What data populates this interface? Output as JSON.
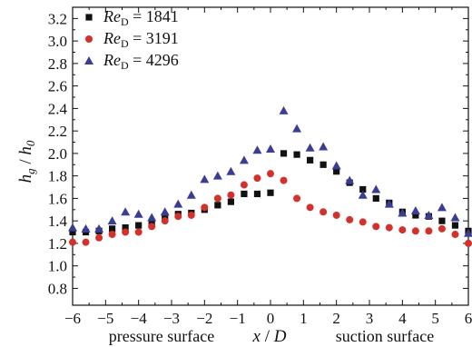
{
  "chart_data": {
    "type": "scatter",
    "xlabel_prefix": "x",
    "xlabel_sep": " / ",
    "xlabel_suffix": "D",
    "ylabel": "hg / h0",
    "xlim": [
      -6,
      6
    ],
    "ylim": [
      0.65,
      3.3
    ],
    "x_ticks": [
      "−6",
      "−5",
      "−4",
      "−3",
      "−2",
      "−1",
      "0",
      "1",
      "2",
      "3",
      "4",
      "5",
      "6"
    ],
    "y_ticks": [
      "0.8",
      "1.0",
      "1.2",
      "1.4",
      "1.6",
      "1.8",
      "2.0",
      "2.2",
      "2.4",
      "2.6",
      "2.8",
      "3.0",
      "3.2"
    ],
    "annotations": {
      "left": "pressure surface",
      "right": "suction surface"
    },
    "grid": false,
    "legend_position": "top-left",
    "series": [
      {
        "label_var": "Re",
        "label_sub": "D",
        "label_value": " = 1841",
        "marker": "square",
        "color": "#111111",
        "points": [
          [
            -6.0,
            1.3
          ],
          [
            -5.6,
            1.3
          ],
          [
            -5.2,
            1.31
          ],
          [
            -4.8,
            1.33
          ],
          [
            -4.4,
            1.34
          ],
          [
            -4.0,
            1.36
          ],
          [
            -3.6,
            1.38
          ],
          [
            -3.2,
            1.42
          ],
          [
            -2.8,
            1.46
          ],
          [
            -2.4,
            1.47
          ],
          [
            -2.0,
            1.5
          ],
          [
            -1.6,
            1.54
          ],
          [
            -1.2,
            1.57
          ],
          [
            -0.8,
            1.64
          ],
          [
            -0.4,
            1.64
          ],
          [
            0.0,
            1.65
          ],
          [
            0.4,
            2.0
          ],
          [
            0.8,
            1.99
          ],
          [
            1.2,
            1.94
          ],
          [
            1.6,
            1.9
          ],
          [
            2.0,
            1.84
          ],
          [
            2.4,
            1.74
          ],
          [
            2.8,
            1.68
          ],
          [
            3.2,
            1.6
          ],
          [
            3.6,
            1.56
          ],
          [
            4.0,
            1.48
          ],
          [
            4.4,
            1.45
          ],
          [
            4.8,
            1.44
          ],
          [
            5.2,
            1.4
          ],
          [
            5.6,
            1.36
          ],
          [
            6.0,
            1.31
          ]
        ]
      },
      {
        "label_var": "Re",
        "label_sub": "D",
        "label_value": " = 3191",
        "marker": "circle",
        "color": "#d2312c",
        "points": [
          [
            -6.0,
            1.21
          ],
          [
            -5.6,
            1.21
          ],
          [
            -5.2,
            1.25
          ],
          [
            -4.8,
            1.28
          ],
          [
            -4.4,
            1.3
          ],
          [
            -4.0,
            1.3
          ],
          [
            -3.6,
            1.35
          ],
          [
            -3.2,
            1.4
          ],
          [
            -2.8,
            1.44
          ],
          [
            -2.4,
            1.45
          ],
          [
            -2.0,
            1.52
          ],
          [
            -1.6,
            1.6
          ],
          [
            -1.2,
            1.63
          ],
          [
            -0.8,
            1.72
          ],
          [
            -0.4,
            1.78
          ],
          [
            0.0,
            1.82
          ],
          [
            0.4,
            1.76
          ],
          [
            0.8,
            1.6
          ],
          [
            1.2,
            1.52
          ],
          [
            1.6,
            1.48
          ],
          [
            2.0,
            1.45
          ],
          [
            2.4,
            1.41
          ],
          [
            2.8,
            1.39
          ],
          [
            3.2,
            1.35
          ],
          [
            3.6,
            1.34
          ],
          [
            4.0,
            1.32
          ],
          [
            4.4,
            1.31
          ],
          [
            4.8,
            1.31
          ],
          [
            5.2,
            1.33
          ],
          [
            5.6,
            1.28
          ],
          [
            6.0,
            1.2
          ]
        ]
      },
      {
        "label_var": "Re",
        "label_sub": "D",
        "label_value": " = 4296",
        "marker": "triangle",
        "color": "#3a3d94",
        "points": [
          [
            -6.0,
            1.34
          ],
          [
            -5.6,
            1.33
          ],
          [
            -5.2,
            1.33
          ],
          [
            -4.8,
            1.4
          ],
          [
            -4.4,
            1.48
          ],
          [
            -4.0,
            1.46
          ],
          [
            -3.6,
            1.43
          ],
          [
            -3.2,
            1.48
          ],
          [
            -2.8,
            1.55
          ],
          [
            -2.4,
            1.63
          ],
          [
            -2.0,
            1.77
          ],
          [
            -1.6,
            1.8
          ],
          [
            -1.2,
            1.84
          ],
          [
            -0.8,
            1.94
          ],
          [
            -0.4,
            2.03
          ],
          [
            0.0,
            2.04
          ],
          [
            0.4,
            2.38
          ],
          [
            0.8,
            2.22
          ],
          [
            1.2,
            2.05
          ],
          [
            1.6,
            2.06
          ],
          [
            2.0,
            1.89
          ],
          [
            2.4,
            1.76
          ],
          [
            2.8,
            1.63
          ],
          [
            3.2,
            1.68
          ],
          [
            3.6,
            1.55
          ],
          [
            4.0,
            1.47
          ],
          [
            4.4,
            1.49
          ],
          [
            4.8,
            1.45
          ],
          [
            5.2,
            1.52
          ],
          [
            5.6,
            1.43
          ],
          [
            6.0,
            1.29
          ]
        ]
      }
    ]
  }
}
